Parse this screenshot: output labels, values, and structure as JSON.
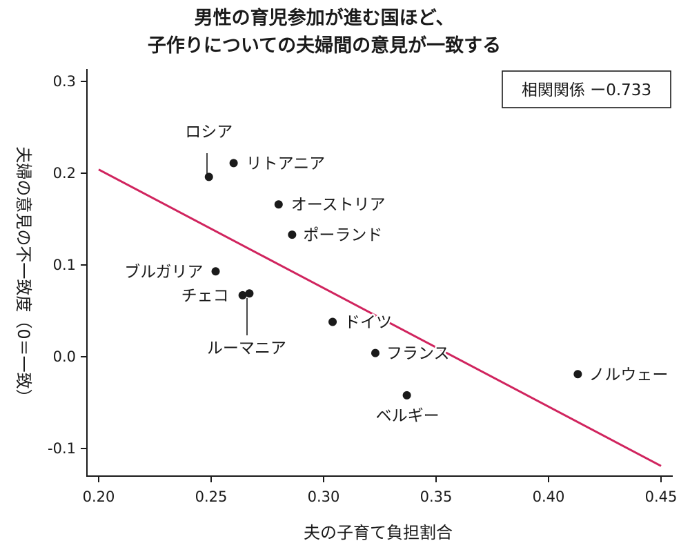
{
  "chart_data": {
    "type": "scatter",
    "title": [
      "男性の育児参加が進む国ほど、",
      "子作りについての夫婦間の意見が一致する"
    ],
    "xlabel": "夫の子育て負担割合",
    "ylabel": "夫婦の意見の不一致度（0＝一致）",
    "xlim": [
      0.195,
      0.455
    ],
    "ylim": [
      -0.13,
      0.315
    ],
    "x_ticks": [
      0.2,
      0.25,
      0.3,
      0.35,
      0.4,
      0.45
    ],
    "x_tick_labels": [
      "0.20",
      "0.25",
      "0.30",
      "0.35",
      "0.40",
      "0.45"
    ],
    "y_ticks": [
      -0.1,
      0.0,
      0.1,
      0.2,
      0.3
    ],
    "y_tick_labels": [
      "-0.1",
      "0.0",
      "0.1",
      "0.2",
      "0.3"
    ],
    "annotation": "相関関係 ー0.733",
    "trendline": {
      "x": [
        0.2,
        0.45
      ],
      "y": [
        0.204,
        -0.119
      ],
      "color": "#d0245e"
    },
    "point_color": "#1a1a1a",
    "points": [
      {
        "label": "ロシア",
        "x": 0.249,
        "y": 0.196
      },
      {
        "label": "リトアニア",
        "x": 0.26,
        "y": 0.211
      },
      {
        "label": "オーストリア",
        "x": 0.28,
        "y": 0.166
      },
      {
        "label": "ポーランド",
        "x": 0.286,
        "y": 0.133
      },
      {
        "label": "ブルガリア",
        "x": 0.252,
        "y": 0.093
      },
      {
        "label": "チェコ",
        "x": 0.264,
        "y": 0.067
      },
      {
        "label": "ルーマニア",
        "x": 0.267,
        "y": 0.069
      },
      {
        "label": "ドイツ",
        "x": 0.304,
        "y": 0.038
      },
      {
        "label": "フランス",
        "x": 0.323,
        "y": 0.004
      },
      {
        "label": "ノルウェー",
        "x": 0.413,
        "y": -0.019
      },
      {
        "label": "ベルギー",
        "x": 0.337,
        "y": -0.042
      }
    ]
  }
}
